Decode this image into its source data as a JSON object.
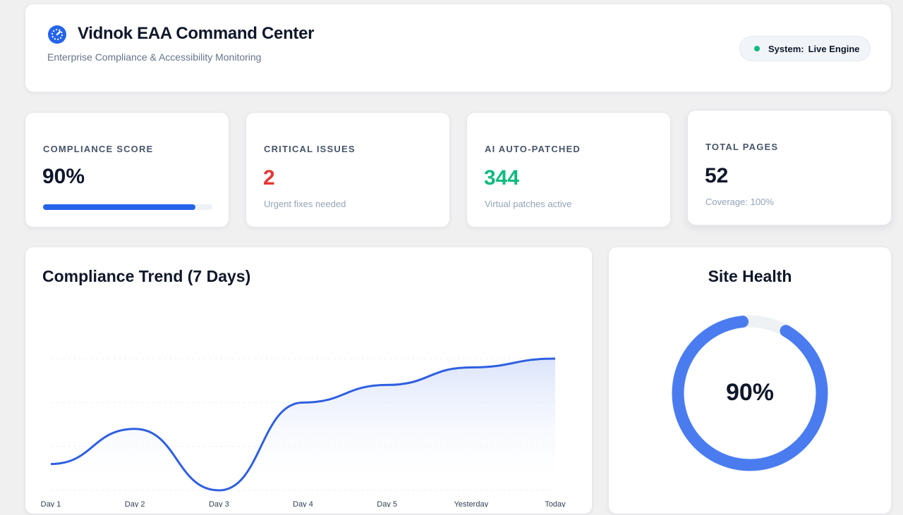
{
  "header": {
    "title": "Vidnok EAA Command Center",
    "subtitle": "Enterprise Compliance & Accessibility Monitoring",
    "status_label": "System:",
    "status_value": "Live Engine",
    "logo_icon": "gauge-icon"
  },
  "stats": [
    {
      "label": "COMPLIANCE SCORE",
      "value": "90%",
      "progress": 0.9
    },
    {
      "label": "CRITICAL ISSUES",
      "value": "2",
      "note": "Urgent fixes needed",
      "color": "#e53935"
    },
    {
      "label": "AI AUTO-PATCHED",
      "value": "344",
      "note": "Virtual patches active",
      "color": "#10b981"
    },
    {
      "label": "TOTAL PAGES",
      "value": "52",
      "note": "Coverage: 100%"
    }
  ],
  "trend": {
    "title": "Compliance Trend (7 Days)"
  },
  "health": {
    "title": "Site Health",
    "value": "90%",
    "percent": 90,
    "color": "#4a7cf0"
  },
  "chart_data": {
    "type": "area",
    "title": "Compliance Trend (7 Days)",
    "categories": [
      "Day 1",
      "Day 2",
      "Day 3",
      "Day 4",
      "Day 5",
      "Yesterday",
      "Today"
    ],
    "values": [
      0.6,
      1.4,
      0.0,
      2.0,
      2.4,
      2.8,
      3.0
    ],
    "ylim": [
      0,
      3
    ],
    "grid": true,
    "color": "#2f5fe0",
    "xlabel": "",
    "ylabel": ""
  }
}
